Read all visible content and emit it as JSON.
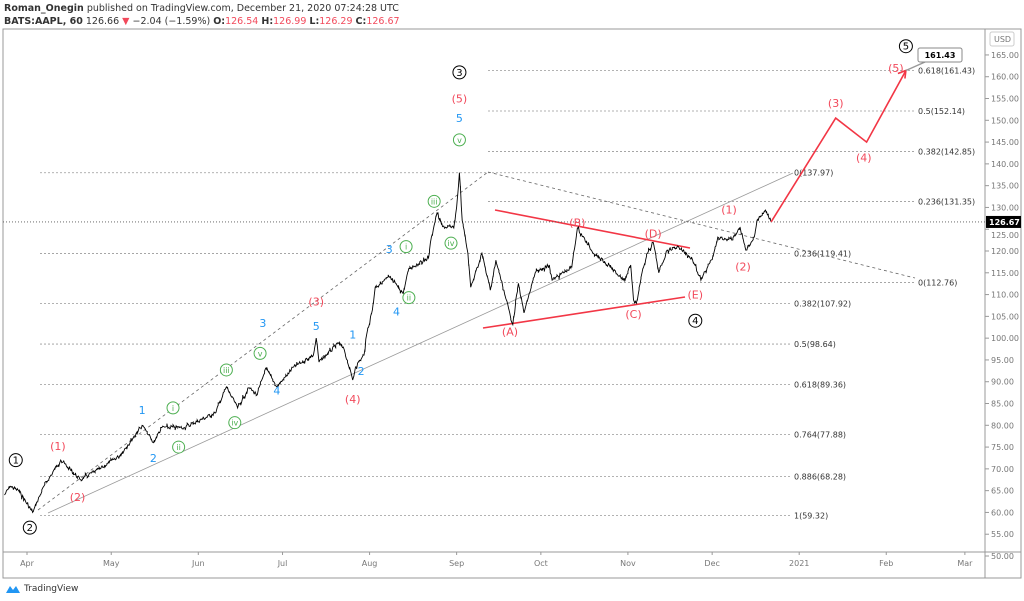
{
  "header": {
    "author": "Roman_Onegin",
    "published": "published on TradingView.com, December 21, 2020 07:24:28 UTC",
    "symbol": "BATS:AAPL, 60",
    "last": "126.66",
    "change": "−2.04 (−1.59%)",
    "o_label": "O:",
    "o": "126.54",
    "h_label": "H:",
    "h": "126.99",
    "l_label": "L:",
    "l": "126.29",
    "c_label": "C:",
    "c": "126.67"
  },
  "colors": {
    "down": "#f2495b",
    "wave_red": "#f2495b",
    "wave_blue": "#2196f3",
    "wave_green": "#4caf50",
    "candles": "#000000"
  },
  "footer": {
    "brand": "TradingView"
  },
  "chart_data": {
    "type": "line",
    "note_style": "candlestick",
    "currency": "USD",
    "ylim": [
      50,
      170
    ],
    "y_ticks": [
      "50.00",
      "55.00",
      "60.00",
      "65.00",
      "70.00",
      "75.00",
      "80.00",
      "85.00",
      "90.00",
      "95.00",
      "100.00",
      "105.00",
      "110.00",
      "115.00",
      "120.00",
      "125.00",
      "130.00",
      "135.00",
      "140.00",
      "145.00",
      "150.00",
      "155.00",
      "160.00",
      "165.00",
      "170.00"
    ],
    "x_ticks": [
      {
        "label": "Apr",
        "date": "2020-04-01"
      },
      {
        "label": "May",
        "date": "2020-05-01"
      },
      {
        "label": "Jun",
        "date": "2020-06-01"
      },
      {
        "label": "Jul",
        "date": "2020-07-01"
      },
      {
        "label": "Aug",
        "date": "2020-08-01"
      },
      {
        "label": "Sep",
        "date": "2020-09-01"
      },
      {
        "label": "Oct",
        "date": "2020-10-01"
      },
      {
        "label": "Nov",
        "date": "2020-11-01"
      },
      {
        "label": "Dec",
        "date": "2020-12-01"
      },
      {
        "label": "2021",
        "date": "2021-01-01"
      },
      {
        "label": "Feb",
        "date": "2021-02-01"
      },
      {
        "label": "Mar",
        "date": "2021-03-01"
      }
    ],
    "current_price": "126.67",
    "target_tag": "161.43",
    "price": [
      [
        "2020-03-24",
        64
      ],
      [
        "2020-03-26",
        66
      ],
      [
        "2020-03-29",
        65
      ],
      [
        "2020-04-03",
        60
      ],
      [
        "2020-04-07",
        66
      ],
      [
        "2020-04-13",
        72
      ],
      [
        "2020-04-20",
        67.5
      ],
      [
        "2020-04-27",
        70
      ],
      [
        "2020-05-04",
        73
      ],
      [
        "2020-05-12",
        80
      ],
      [
        "2020-05-16",
        76
      ],
      [
        "2020-05-19",
        79.5
      ],
      [
        "2020-05-27",
        79.5
      ],
      [
        "2020-06-07",
        82.8
      ],
      [
        "2020-06-11",
        88.8
      ],
      [
        "2020-06-15",
        84
      ],
      [
        "2020-06-19",
        88.6
      ],
      [
        "2020-06-22",
        87
      ],
      [
        "2020-06-25",
        93.1
      ],
      [
        "2020-06-29",
        88.8
      ],
      [
        "2020-07-05",
        93.4
      ],
      [
        "2020-07-12",
        96.1
      ],
      [
        "2020-07-13",
        100
      ],
      [
        "2020-07-14",
        94.5
      ],
      [
        "2020-07-21",
        98.9
      ],
      [
        "2020-07-23",
        97.3
      ],
      [
        "2020-07-26",
        90.4
      ],
      [
        "2020-07-27",
        93.4
      ],
      [
        "2020-07-30",
        96.1
      ],
      [
        "2020-07-31",
        101
      ],
      [
        "2020-08-02",
        106.5
      ],
      [
        "2020-08-03",
        111.7
      ],
      [
        "2020-08-08",
        114
      ],
      [
        "2020-08-13",
        110.3
      ],
      [
        "2020-08-15",
        116
      ],
      [
        "2020-08-22",
        118.4
      ],
      [
        "2020-08-23",
        123.2
      ],
      [
        "2020-08-25",
        128.7
      ],
      [
        "2020-08-27",
        125.6
      ],
      [
        "2020-08-31",
        125.3
      ],
      [
        "2020-09-01",
        130
      ],
      [
        "2020-09-02",
        137.98
      ],
      [
        "2020-09-03",
        127
      ],
      [
        "2020-09-05",
        119.5
      ],
      [
        "2020-09-06",
        111.7
      ],
      [
        "2020-09-10",
        119.5
      ],
      [
        "2020-09-13",
        111
      ],
      [
        "2020-09-15",
        117.9
      ],
      [
        "2020-09-21",
        103.1
      ],
      [
        "2020-09-23",
        112.6
      ],
      [
        "2020-09-25",
        105.8
      ],
      [
        "2020-09-29",
        115
      ],
      [
        "2020-10-04",
        116.8
      ],
      [
        "2020-10-05",
        113.3
      ],
      [
        "2020-10-12",
        116.3
      ],
      [
        "2020-10-14",
        125.3
      ],
      [
        "2020-10-19",
        120.2
      ],
      [
        "2020-10-24",
        117.2
      ],
      [
        "2020-10-31",
        113.3
      ],
      [
        "2020-11-02",
        116.8
      ],
      [
        "2020-11-03",
        108.8
      ],
      [
        "2020-11-04",
        108
      ],
      [
        "2020-11-06",
        115
      ],
      [
        "2020-11-08",
        119.5
      ],
      [
        "2020-11-10",
        122
      ],
      [
        "2020-11-12",
        115
      ],
      [
        "2020-11-15",
        120.2
      ],
      [
        "2020-11-19",
        121
      ],
      [
        "2020-11-24",
        118
      ],
      [
        "2020-11-27",
        113.3
      ],
      [
        "2020-12-01",
        118
      ],
      [
        "2020-12-03",
        123.2
      ],
      [
        "2020-12-08",
        122.5
      ],
      [
        "2020-12-11",
        125.3
      ],
      [
        "2020-12-13",
        120.2
      ],
      [
        "2020-12-16",
        123.2
      ],
      [
        "2020-12-17",
        127.1
      ],
      [
        "2020-12-20",
        129.4
      ],
      [
        "2020-12-22",
        126.67
      ]
    ],
    "projection": [
      [
        "2020-12-22",
        126.67
      ],
      [
        "2021-01-14",
        150.5
      ],
      [
        "2021-01-25",
        145
      ],
      [
        "2021-02-08",
        161.43
      ]
    ],
    "fib_retracement": [
      {
        "label": "0(137.97)",
        "price": 137.97
      },
      {
        "label": "0.236(119.41)",
        "price": 119.41
      },
      {
        "label": "0.382(107.92)",
        "price": 107.92
      },
      {
        "label": "0.5(98.64)",
        "price": 98.64
      },
      {
        "label": "0.618(89.36)",
        "price": 89.36
      },
      {
        "label": "0.764(77.88)",
        "price": 77.88
      },
      {
        "label": "0.886(68.28)",
        "price": 68.28
      },
      {
        "label": "1(59.32)",
        "price": 59.32
      }
    ],
    "fib_extension": [
      {
        "label": "0.618(161.43)",
        "price": 161.43
      },
      {
        "label": "0.5(152.14)",
        "price": 152.14
      },
      {
        "label": "0.382(142.85)",
        "price": 142.85
      },
      {
        "label": "0.236(131.35)",
        "price": 131.35
      },
      {
        "label": "0(112.76)",
        "price": 112.76
      }
    ],
    "wave_labels": {
      "black": [
        [
          "1",
          "2020-03-28",
          72
        ],
        [
          "2",
          "2020-04-02",
          56.5
        ],
        [
          "3",
          "2020-09-02",
          161
        ],
        [
          "4",
          "2020-11-25",
          104
        ],
        [
          "5",
          "2021-02-08",
          167
        ]
      ],
      "red": [
        [
          "(1)",
          "2020-04-12",
          75.2
        ],
        [
          "(2)",
          "2020-04-19",
          63.5
        ],
        [
          "(3)",
          "2020-07-13",
          107
        ],
        [
          "(4)",
          "2020-07-26",
          86
        ],
        [
          "(5)",
          "2020-09-02",
          155
        ],
        [
          "(A)",
          "2020-09-20",
          101.5
        ],
        [
          "(B)",
          "2020-10-14",
          126.5
        ],
        [
          "(C)",
          "2020-11-03",
          105.5
        ],
        [
          "(D)",
          "2020-11-10",
          124
        ],
        [
          "(E)",
          "2020-11-25",
          110
        ],
        [
          "(1)",
          "2020-12-07",
          129.5
        ],
        [
          "(2)",
          "2020-12-12",
          116.5
        ],
        [
          "(3)",
          "2021-01-14",
          154
        ],
        [
          "(4)",
          "2021-01-24",
          141.5
        ],
        [
          "(5)",
          "2021-02-08",
          162.5
        ]
      ],
      "blue": [
        [
          "1",
          "2020-05-12",
          83.5
        ],
        [
          "2",
          "2020-05-16",
          72.5
        ],
        [
          "3",
          "2020-06-24",
          103.5
        ],
        [
          "4",
          "2020-06-29",
          88
        ],
        [
          "5",
          "2020-07-13",
          105.5
        ],
        [
          "1",
          "2020-07-26",
          100.8
        ],
        [
          "2",
          "2020-07-29",
          92.5
        ],
        [
          "3",
          "2020-08-08",
          120.5
        ],
        [
          "4",
          "2020-08-12",
          107.5
        ],
        [
          "5",
          "2020-09-02",
          150.5
        ]
      ],
      "green": [
        [
          "i",
          "2020-05-23",
          84
        ],
        [
          "ii",
          "2020-05-25",
          75
        ],
        [
          "iii",
          "2020-06-11",
          92.7
        ],
        [
          "iv",
          "2020-06-14",
          80.6
        ],
        [
          "v",
          "2020-06-23",
          96.5
        ],
        [
          "i",
          "2020-08-14",
          121
        ],
        [
          "ii",
          "2020-08-15",
          109.3
        ],
        [
          "iii",
          "2020-08-24",
          131.4
        ],
        [
          "iv",
          "2020-08-30",
          121.8
        ],
        [
          "v",
          "2020-09-02",
          145.5
        ]
      ]
    }
  }
}
